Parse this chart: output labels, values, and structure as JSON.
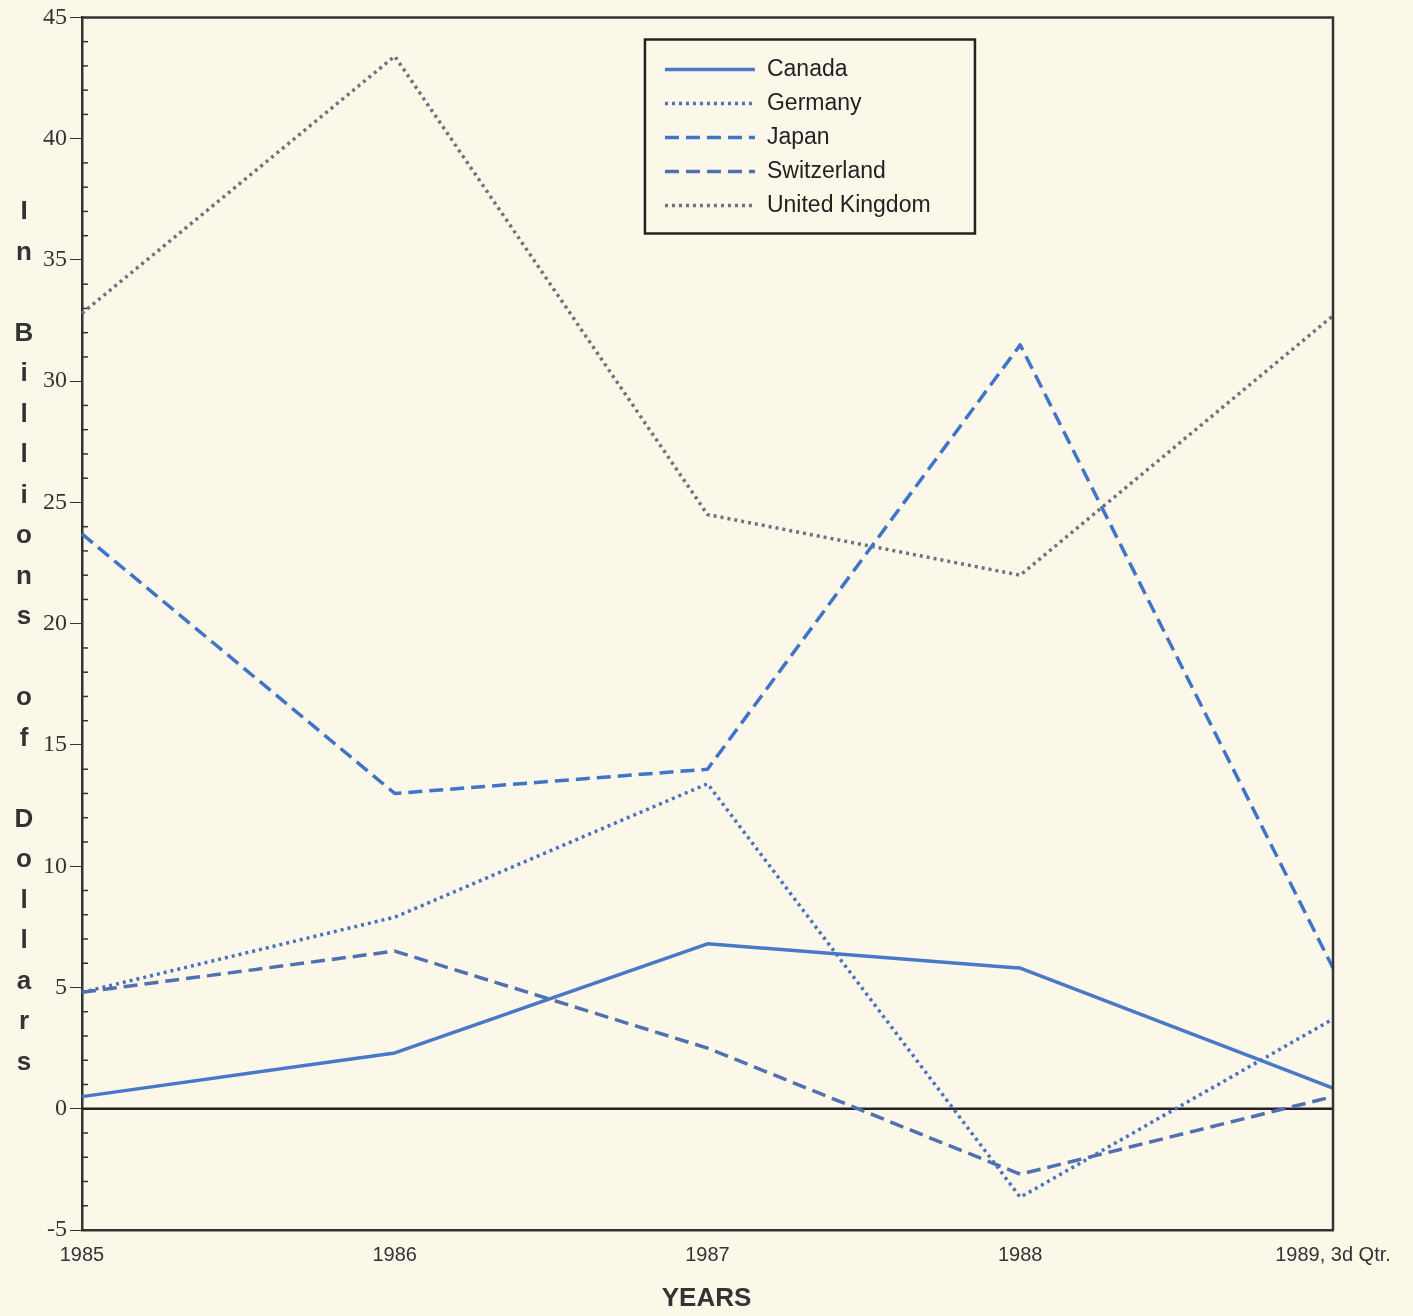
{
  "chart_data": {
    "type": "line",
    "xlabel": "YEARS",
    "ylabel": "In Billions of Dollars",
    "categories": [
      "1985",
      "1986",
      "1987",
      "1988",
      "1989, 3d Qtr."
    ],
    "series": [
      {
        "name": "Canada",
        "color": "#4a78c8",
        "line_style": "solid",
        "values": [
          0.5,
          2.3,
          6.8,
          5.8,
          0.85
        ]
      },
      {
        "name": "Germany",
        "color": "#4a70c0",
        "line_style": "dotted",
        "values": [
          4.8,
          7.9,
          13.4,
          -3.65,
          3.7
        ]
      },
      {
        "name": "Japan",
        "color": "#3f74c8",
        "line_style": "dashed",
        "values": [
          23.7,
          13.0,
          14.0,
          31.5,
          5.8
        ]
      },
      {
        "name": "Switzerland",
        "color": "#5070b0",
        "line_style": "dashed",
        "values": [
          4.8,
          6.5,
          2.5,
          -2.7,
          0.5
        ]
      },
      {
        "name": "United Kingdom",
        "color": "#707080",
        "line_style": "dotted",
        "values": [
          32.8,
          43.4,
          24.5,
          22.0,
          32.7
        ]
      }
    ],
    "ylim": [
      -5,
      45
    ],
    "yticks": [
      -5,
      0,
      5,
      10,
      15,
      20,
      25,
      30,
      35,
      40,
      45
    ],
    "ref_lines": [
      {
        "axis": "y",
        "value": 0,
        "color": "#222222"
      }
    ],
    "grid": false,
    "legend": "top",
    "marker": "none"
  }
}
